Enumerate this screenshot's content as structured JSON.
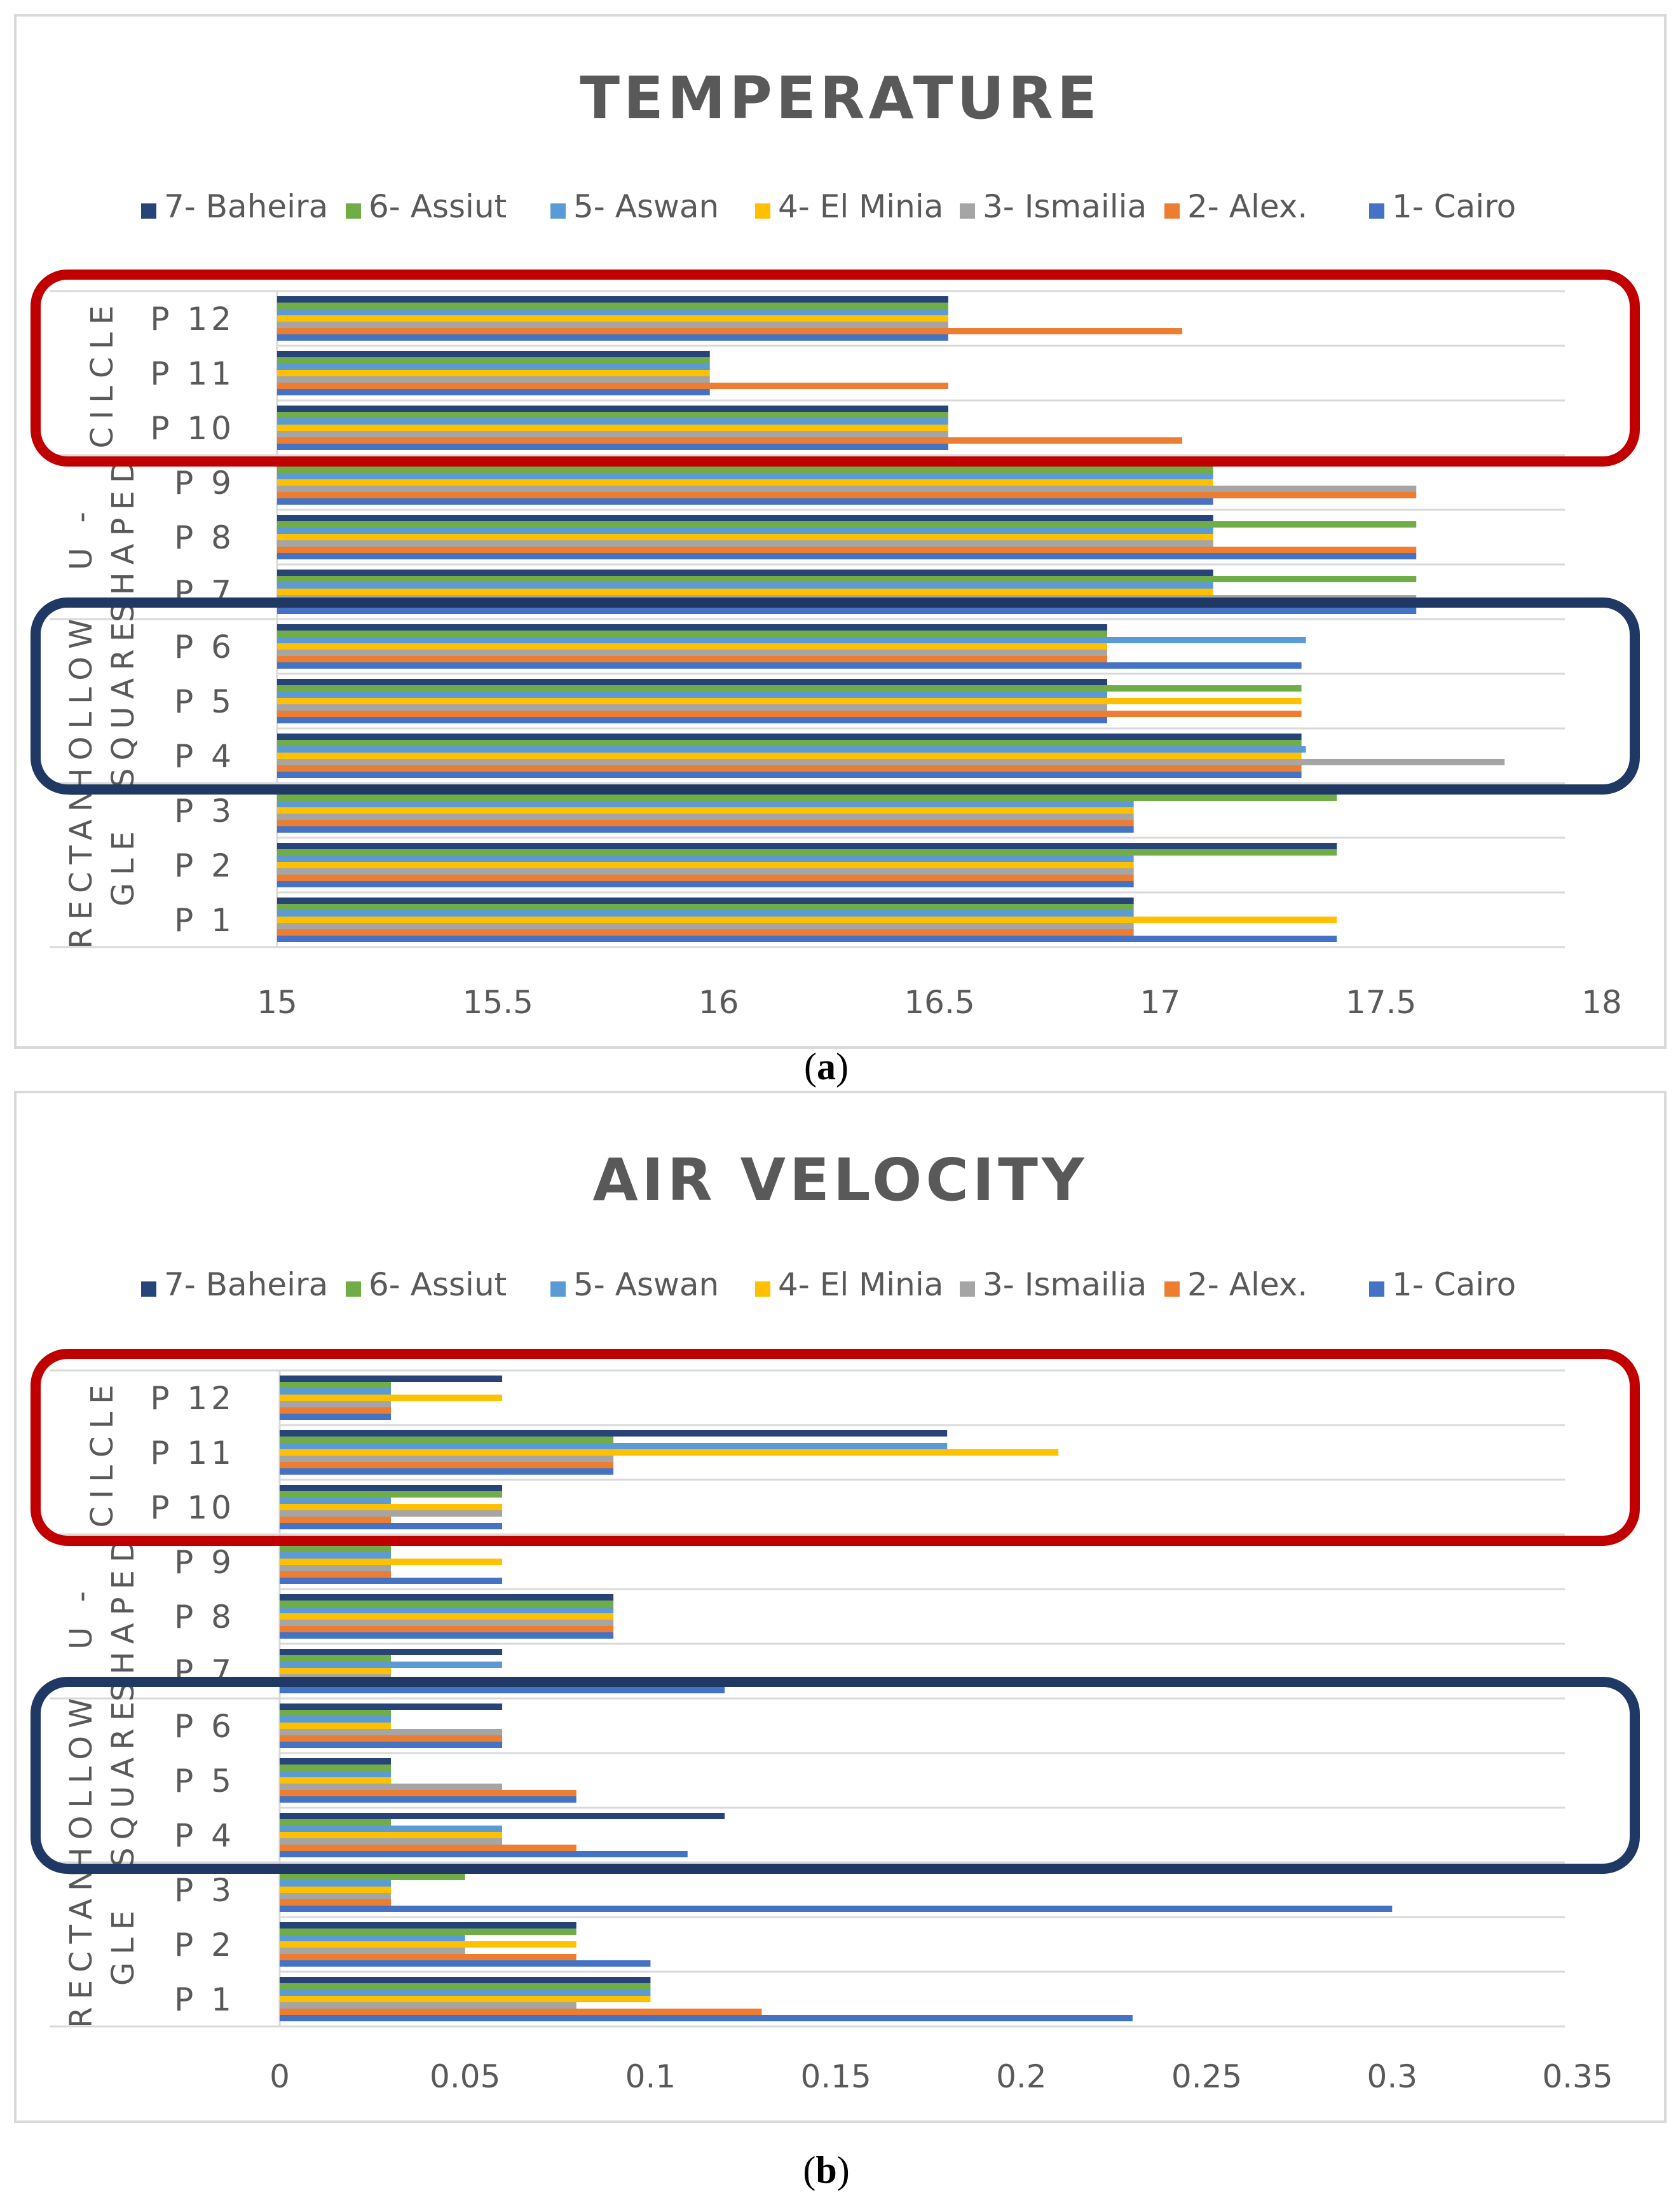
{
  "figure": {
    "caption_a_open": "(",
    "caption_a_letter": "a",
    "caption_a_close": ")",
    "caption_b_open": "(",
    "caption_b_letter": "b",
    "caption_b_close": ")"
  },
  "colors": {
    "1- Cairo": "#4472c4",
    "2- Alex.": "#ed7d31",
    "3- Ismailia": "#a5a5a5",
    "4- El Minia": "#ffc000",
    "5- Aswan": "#5b9bd5",
    "6- Assiut": "#70ad47",
    "7- Baheira": "#264478",
    "highlight_circle": "#c00000",
    "highlight_square": "#1f3864",
    "text": "#595959",
    "grid": "#d9d9d9"
  },
  "chart_data": [
    {
      "type": "bar",
      "orientation": "horizontal",
      "title": "TEMPERATURE",
      "legend_position": "top",
      "legend": [
        "7- Baheira",
        "6- Assiut",
        "5- Aswan",
        "4- El Minia",
        "3- Ismailia",
        "2- Alex.",
        "1- Cairo"
      ],
      "categories": [
        "P1",
        "P2",
        "P3",
        "P4",
        "P5",
        "P6",
        "P7",
        "P8",
        "P9",
        "P10",
        "P11",
        "P12"
      ],
      "category_labels": [
        "P 1",
        "P 2",
        "P 3",
        "P 4",
        "P 5",
        "P 6",
        "P 7",
        "P 8",
        "P 9",
        "P 10",
        "P 11",
        "P 12"
      ],
      "groups": [
        {
          "label_lines": [
            "RECTAN",
            "GLE"
          ],
          "from": 0,
          "to": 2
        },
        {
          "label_lines": [
            "HOLLOW",
            "SQUARE"
          ],
          "from": 3,
          "to": 5
        },
        {
          "label_lines": [
            "U -",
            "SHAPED"
          ],
          "from": 6,
          "to": 8
        },
        {
          "label_lines": [
            "CILCLE"
          ],
          "from": 9,
          "to": 11
        }
      ],
      "highlights": [
        {
          "style": "circle",
          "from": 9,
          "to": 11
        },
        {
          "style": "square",
          "from": 3,
          "to": 5
        }
      ],
      "xlim": [
        15,
        18
      ],
      "xticks": [
        "15",
        "15.5",
        "16",
        "16.5",
        "17",
        "17.5",
        "18"
      ],
      "series": [
        {
          "name": "1- Cairo",
          "values": [
            17.4,
            16.94,
            16.94,
            17.32,
            16.88,
            17.32,
            17.58,
            17.58,
            17.12,
            16.52,
            15.98,
            16.52
          ]
        },
        {
          "name": "2- Alex.",
          "values": [
            16.94,
            16.94,
            16.94,
            17.32,
            17.32,
            16.88,
            17.12,
            17.58,
            17.58,
            17.05,
            16.52,
            17.05
          ]
        },
        {
          "name": "3- Ismailia",
          "values": [
            16.94,
            16.94,
            16.94,
            17.78,
            16.88,
            16.88,
            17.58,
            17.12,
            17.58,
            16.52,
            15.98,
            16.52
          ]
        },
        {
          "name": "4- El Minia",
          "values": [
            17.4,
            16.94,
            16.94,
            17.32,
            17.32,
            16.88,
            17.12,
            17.12,
            17.12,
            16.52,
            15.98,
            16.52
          ]
        },
        {
          "name": "5- Aswan",
          "values": [
            16.94,
            16.94,
            16.94,
            17.33,
            16.88,
            17.33,
            17.12,
            17.12,
            17.12,
            16.52,
            15.98,
            16.52
          ]
        },
        {
          "name": "6- Assiut",
          "values": [
            16.94,
            17.4,
            17.4,
            17.32,
            17.32,
            16.88,
            17.58,
            17.58,
            17.12,
            16.52,
            15.98,
            16.52
          ]
        },
        {
          "name": "7- Baheira",
          "values": [
            16.94,
            17.4,
            16.94,
            17.32,
            16.88,
            16.88,
            17.12,
            17.12,
            17.12,
            16.52,
            15.98,
            16.52
          ]
        }
      ]
    },
    {
      "type": "bar",
      "orientation": "horizontal",
      "title": "AIR VELOCITY",
      "legend_position": "top",
      "legend": [
        "7- Baheira",
        "6- Assiut",
        "5- Aswan",
        "4- El Minia",
        "3- Ismailia",
        "2- Alex.",
        "1- Cairo"
      ],
      "categories": [
        "P1",
        "P2",
        "P3",
        "P4",
        "P5",
        "P6",
        "P7",
        "P8",
        "P9",
        "P10",
        "P11",
        "P12"
      ],
      "category_labels": [
        "P 1",
        "P 2",
        "P 3",
        "P 4",
        "P 5",
        "P 6",
        "P 7",
        "P 8",
        "P 9",
        "P 10",
        "P 11",
        "P 12"
      ],
      "groups": [
        {
          "label_lines": [
            "RECTAN",
            "GLE"
          ],
          "from": 0,
          "to": 2
        },
        {
          "label_lines": [
            "HOLLOW",
            "SQUARE"
          ],
          "from": 3,
          "to": 5
        },
        {
          "label_lines": [
            "U -",
            "SHAPED"
          ],
          "from": 6,
          "to": 8
        },
        {
          "label_lines": [
            "CILCLE"
          ],
          "from": 9,
          "to": 11
        }
      ],
      "highlights": [
        {
          "style": "circle",
          "from": 9,
          "to": 11
        },
        {
          "style": "square",
          "from": 3,
          "to": 5
        }
      ],
      "xlim": [
        0,
        0.35
      ],
      "xticks": [
        "0",
        "0.05",
        "0.1",
        "0.15",
        "0.2",
        "0.25",
        "0.3",
        "0.35"
      ],
      "series": [
        {
          "name": "1- Cairo",
          "values": [
            0.23,
            0.1,
            0.3,
            0.11,
            0.08,
            0.06,
            0.12,
            0.09,
            0.06,
            0.06,
            0.09,
            0.03
          ]
        },
        {
          "name": "2- Alex.",
          "values": [
            0.13,
            0.08,
            0.03,
            0.08,
            0.08,
            0.06,
            0.03,
            0.09,
            0.03,
            0.03,
            0.09,
            0.03
          ]
        },
        {
          "name": "3- Ismailia",
          "values": [
            0.08,
            0.05,
            0.03,
            0.06,
            0.06,
            0.06,
            0.03,
            0.09,
            0.03,
            0.06,
            0.09,
            0.03
          ]
        },
        {
          "name": "4- El Minia",
          "values": [
            0.1,
            0.08,
            0.03,
            0.06,
            0.03,
            0.03,
            0.03,
            0.09,
            0.06,
            0.06,
            0.21,
            0.06
          ]
        },
        {
          "name": "5- Aswan",
          "values": [
            0.1,
            0.05,
            0.03,
            0.06,
            0.03,
            0.03,
            0.06,
            0.09,
            0.03,
            0.03,
            0.18,
            0.03
          ]
        },
        {
          "name": "6- Assiut",
          "values": [
            0.1,
            0.08,
            0.05,
            0.03,
            0.03,
            0.03,
            0.03,
            0.09,
            0.03,
            0.06,
            0.09,
            0.03
          ]
        },
        {
          "name": "7- Baheira",
          "values": [
            0.1,
            0.08,
            0.03,
            0.12,
            0.03,
            0.06,
            0.06,
            0.09,
            0.03,
            0.06,
            0.18,
            0.06
          ]
        }
      ]
    }
  ]
}
